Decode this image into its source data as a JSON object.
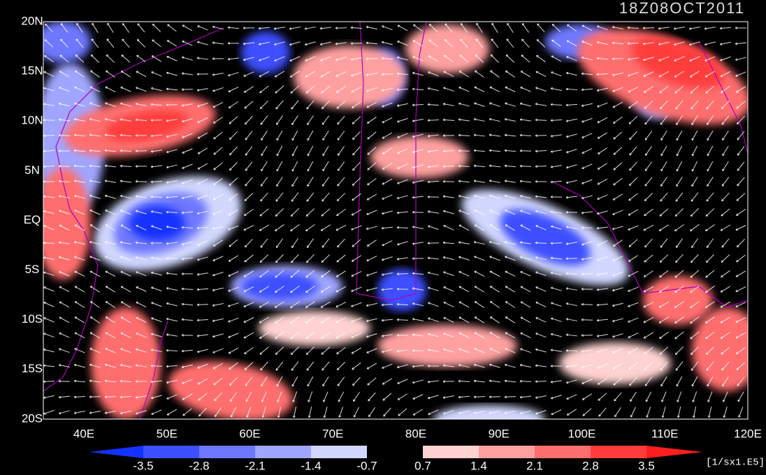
{
  "title": "18Z08OCT2011",
  "lat_labels": [
    "20N",
    "15N",
    "10N",
    "5N",
    "EQ",
    "5S",
    "10S",
    "15S",
    "20S"
  ],
  "lon_labels": [
    "40E",
    "50E",
    "60E",
    "70E",
    "80E",
    "90E",
    "100E",
    "110E",
    "120E"
  ],
  "colorbar": {
    "labels": [
      "-3.5",
      "-2.8",
      "-2.1",
      "-1.4",
      "-0.7",
      "0.7",
      "1.4",
      "2.1",
      "2.8",
      "3.5"
    ],
    "colors": [
      "#1432ff",
      "#3c50ff",
      "#6e78ff",
      "#a0a5ff",
      "#d2d7ff",
      "#000000",
      "#ffd2d2",
      "#ffa0a0",
      "#ff6e6e",
      "#ff3c3c",
      "#ff1e1e"
    ],
    "unit": "[1/sx1.E5]"
  }
}
